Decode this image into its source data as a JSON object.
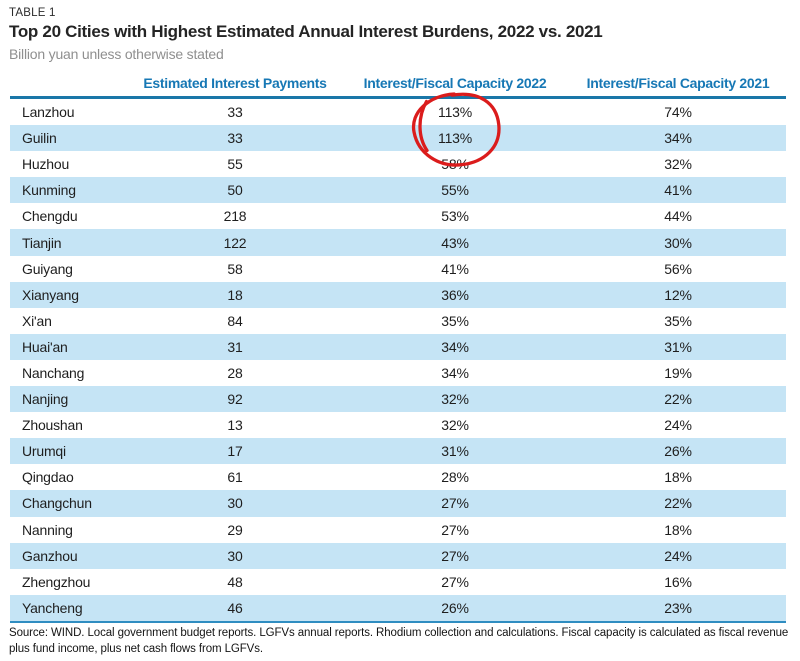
{
  "meta": {
    "table_label": "TABLE 1",
    "title": "Top 20 Cities with Highest Estimated Annual Interest Burdens, 2022 vs. 2021",
    "subtitle": "Billion yuan unless otherwise stated",
    "source": "Source: WIND. Local government budget reports. LGFVs annual reports. Rhodium collection and calculations.  Fiscal capacity is calculated as fiscal revenue plus fund income, plus net cash flows from LGFVs."
  },
  "colors": {
    "header_blue": "#1778b5",
    "rule_blue": "#1a77a8",
    "stripe_blue": "#c5e4f5",
    "annotation_red": "#db1c1c",
    "subtitle_gray": "#8f8f8f"
  },
  "annotation": {
    "shape": "hand-drawn-red-circle",
    "color": "#db1c1c",
    "circled_values": [
      "113%",
      "113%"
    ],
    "circled_rows": [
      "Lanzhou",
      "Guilin"
    ],
    "circled_column": "Interest/Fiscal Capacity 2022"
  },
  "chart_data": {
    "type": "table",
    "title": "Top 20 Cities with Highest Estimated Annual Interest Burdens, 2022 vs. 2021",
    "subtitle": "Billion yuan unless otherwise stated",
    "columns": [
      "",
      "Estimated Interest Payments",
      "Interest/Fiscal Capacity 2022",
      "Interest/Fiscal Capacity 2021"
    ],
    "rows": [
      [
        "Lanzhou",
        "33",
        "113%",
        "74%"
      ],
      [
        "Guilin",
        "33",
        "113%",
        "34%"
      ],
      [
        "Huzhou",
        "55",
        "58%",
        "32%"
      ],
      [
        "Kunming",
        "50",
        "55%",
        "41%"
      ],
      [
        "Chengdu",
        "218",
        "53%",
        "44%"
      ],
      [
        "Tianjin",
        "122",
        "43%",
        "30%"
      ],
      [
        "Guiyang",
        "58",
        "41%",
        "56%"
      ],
      [
        "Xianyang",
        "18",
        "36%",
        "12%"
      ],
      [
        "Xi'an",
        "84",
        "35%",
        "35%"
      ],
      [
        "Huai'an",
        "31",
        "34%",
        "31%"
      ],
      [
        "Nanchang",
        "28",
        "34%",
        "19%"
      ],
      [
        "Nanjing",
        "92",
        "32%",
        "22%"
      ],
      [
        "Zhoushan",
        "13",
        "32%",
        "24%"
      ],
      [
        "Urumqi",
        "17",
        "31%",
        "26%"
      ],
      [
        "Qingdao",
        "61",
        "28%",
        "18%"
      ],
      [
        "Changchun",
        "30",
        "27%",
        "22%"
      ],
      [
        "Nanning",
        "29",
        "27%",
        "18%"
      ],
      [
        "Ganzhou",
        "30",
        "27%",
        "24%"
      ],
      [
        "Zhengzhou",
        "48",
        "27%",
        "16%"
      ],
      [
        "Yancheng",
        "46",
        "26%",
        "23%"
      ]
    ]
  }
}
